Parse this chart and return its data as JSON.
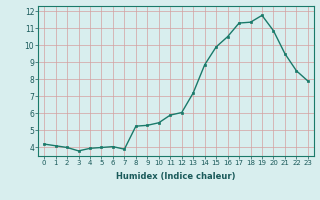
{
  "x": [
    0,
    1,
    2,
    3,
    4,
    5,
    6,
    7,
    8,
    9,
    10,
    11,
    12,
    13,
    14,
    15,
    16,
    17,
    18,
    19,
    20,
    21,
    22,
    23
  ],
  "y": [
    4.2,
    4.1,
    4.0,
    3.8,
    3.95,
    4.0,
    4.05,
    3.9,
    5.25,
    5.3,
    5.45,
    5.9,
    6.05,
    7.2,
    8.85,
    9.9,
    10.5,
    11.3,
    11.35,
    11.75,
    10.85,
    9.5,
    8.5,
    7.9
  ],
  "line_color": "#1a7a6a",
  "marker_color": "#1a7a6a",
  "bg_color": "#d8eeee",
  "grid_color": "#d4a0a0",
  "xlabel": "Humidex (Indice chaleur)",
  "ylim_min": 3.5,
  "ylim_max": 12.3,
  "xlim_min": -0.5,
  "xlim_max": 23.5,
  "yticks": [
    4,
    5,
    6,
    7,
    8,
    9,
    10,
    11,
    12
  ],
  "xticks": [
    0,
    1,
    2,
    3,
    4,
    5,
    6,
    7,
    8,
    9,
    10,
    11,
    12,
    13,
    14,
    15,
    16,
    17,
    18,
    19,
    20,
    21,
    22,
    23
  ],
  "tick_color": "#1a5a5a",
  "label_color": "#1a5a5a",
  "spine_color": "#1a7a6a"
}
